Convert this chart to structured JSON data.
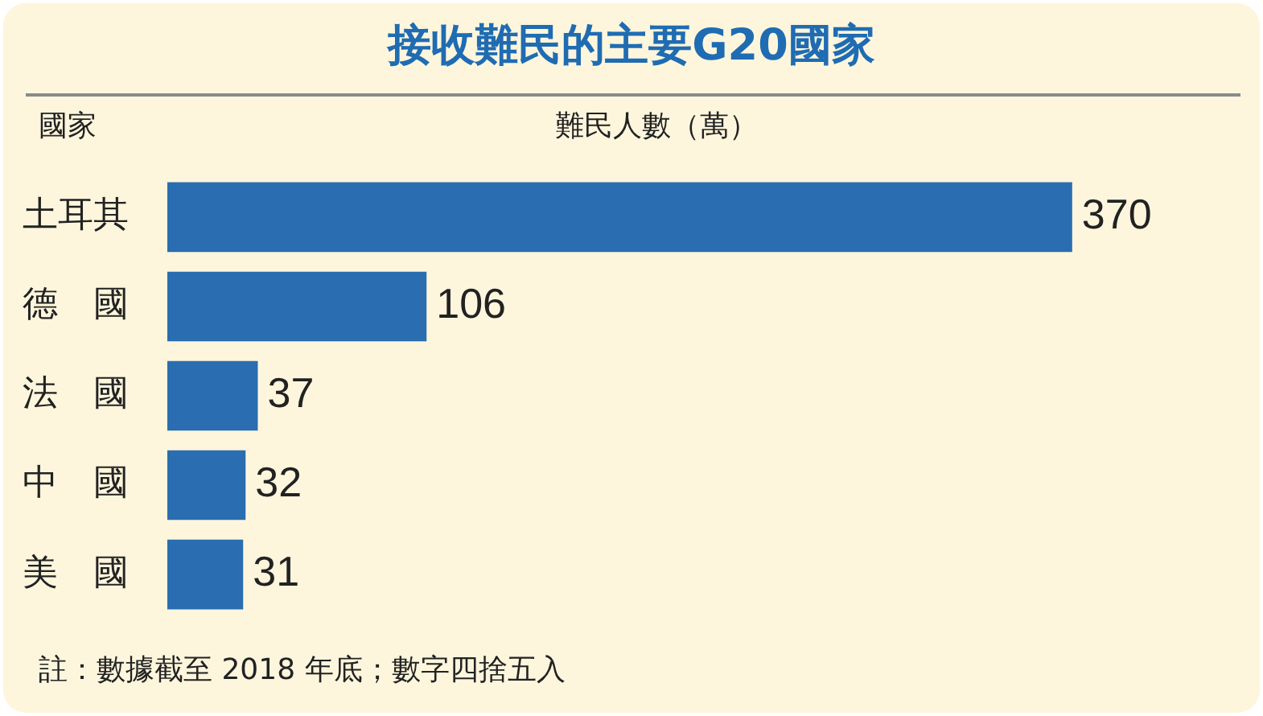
{
  "chart_data": {
    "type": "bar",
    "orientation": "horizontal",
    "title": "接收難民的主要G20國家",
    "ylabel": "國家",
    "xlabel": "難民人數（萬）",
    "categories": [
      "土耳其",
      "德　國",
      "法　國",
      "中　國",
      "美　國"
    ],
    "values": [
      370,
      106,
      37,
      32,
      31
    ],
    "color": "#2a6db0",
    "data_labels": true,
    "legend": false,
    "annotations": [
      "註：數據截至 2018 年底；數字四捨五入"
    ]
  }
}
